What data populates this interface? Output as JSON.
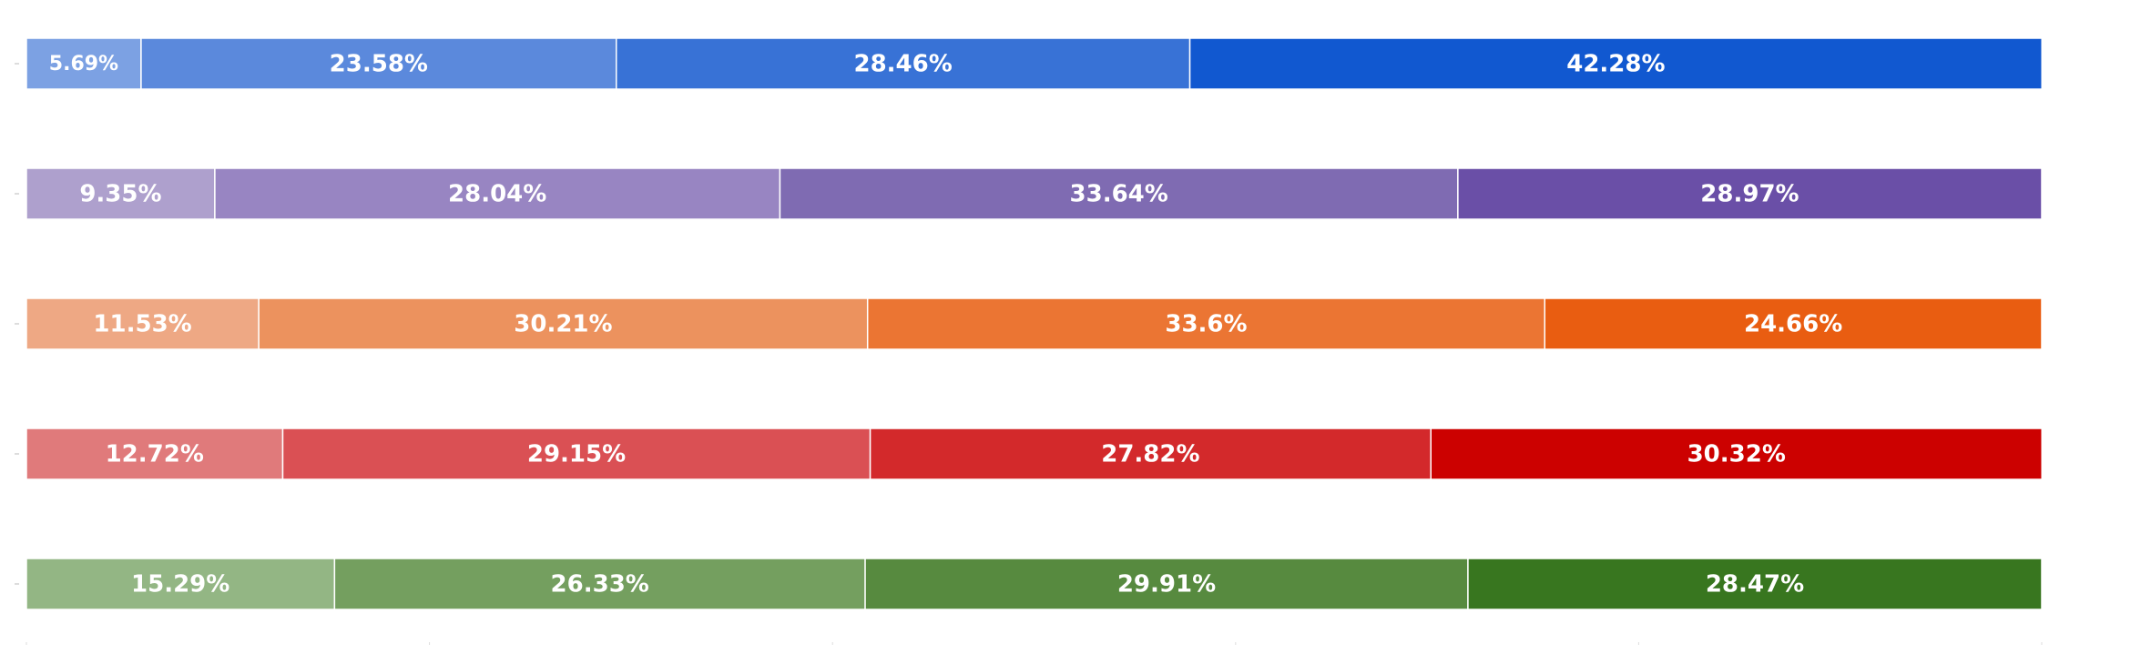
{
  "chart_data": {
    "type": "bar",
    "orientation": "horizontal",
    "stacked": true,
    "normalized": true,
    "xlim": [
      0,
      100
    ],
    "grid": false,
    "legend": "none",
    "title": "",
    "xlabel": "",
    "ylabel": "",
    "rows": [
      {
        "values": [
          5.69,
          23.58,
          28.46,
          42.28
        ],
        "labels": [
          "5.69%",
          "23.58%",
          "28.46%",
          "42.28%"
        ],
        "colors": [
          "#7ca1e3",
          "#5b89dc",
          "#3872d6",
          "#1158d0"
        ]
      },
      {
        "values": [
          9.35,
          28.04,
          33.64,
          28.97
        ],
        "labels": [
          "9.35%",
          "28.04%",
          "33.64%",
          "28.97%"
        ],
        "colors": [
          "#aea0cd",
          "#9885c2",
          "#7f6bb2",
          "#6a4fa7"
        ]
      },
      {
        "values": [
          11.53,
          30.21,
          33.6,
          24.66
        ],
        "labels": [
          "11.53%",
          "30.21%",
          "33.6%",
          "24.66%"
        ],
        "colors": [
          "#eea884",
          "#ec925e",
          "#eb7533",
          "#e95d11"
        ]
      },
      {
        "values": [
          12.72,
          29.15,
          27.82,
          30.32
        ],
        "labels": [
          "12.72%",
          "29.15%",
          "27.82%",
          "30.32%"
        ],
        "colors": [
          "#e07a7b",
          "#da5054",
          "#d3292b",
          "#cc0100"
        ]
      },
      {
        "values": [
          15.29,
          26.33,
          29.91,
          28.47
        ],
        "labels": [
          "15.29%",
          "26.33%",
          "29.91%",
          "28.47%"
        ],
        "colors": [
          "#93b684",
          "#749f5f",
          "#578a3f",
          "#38761f"
        ]
      }
    ]
  }
}
